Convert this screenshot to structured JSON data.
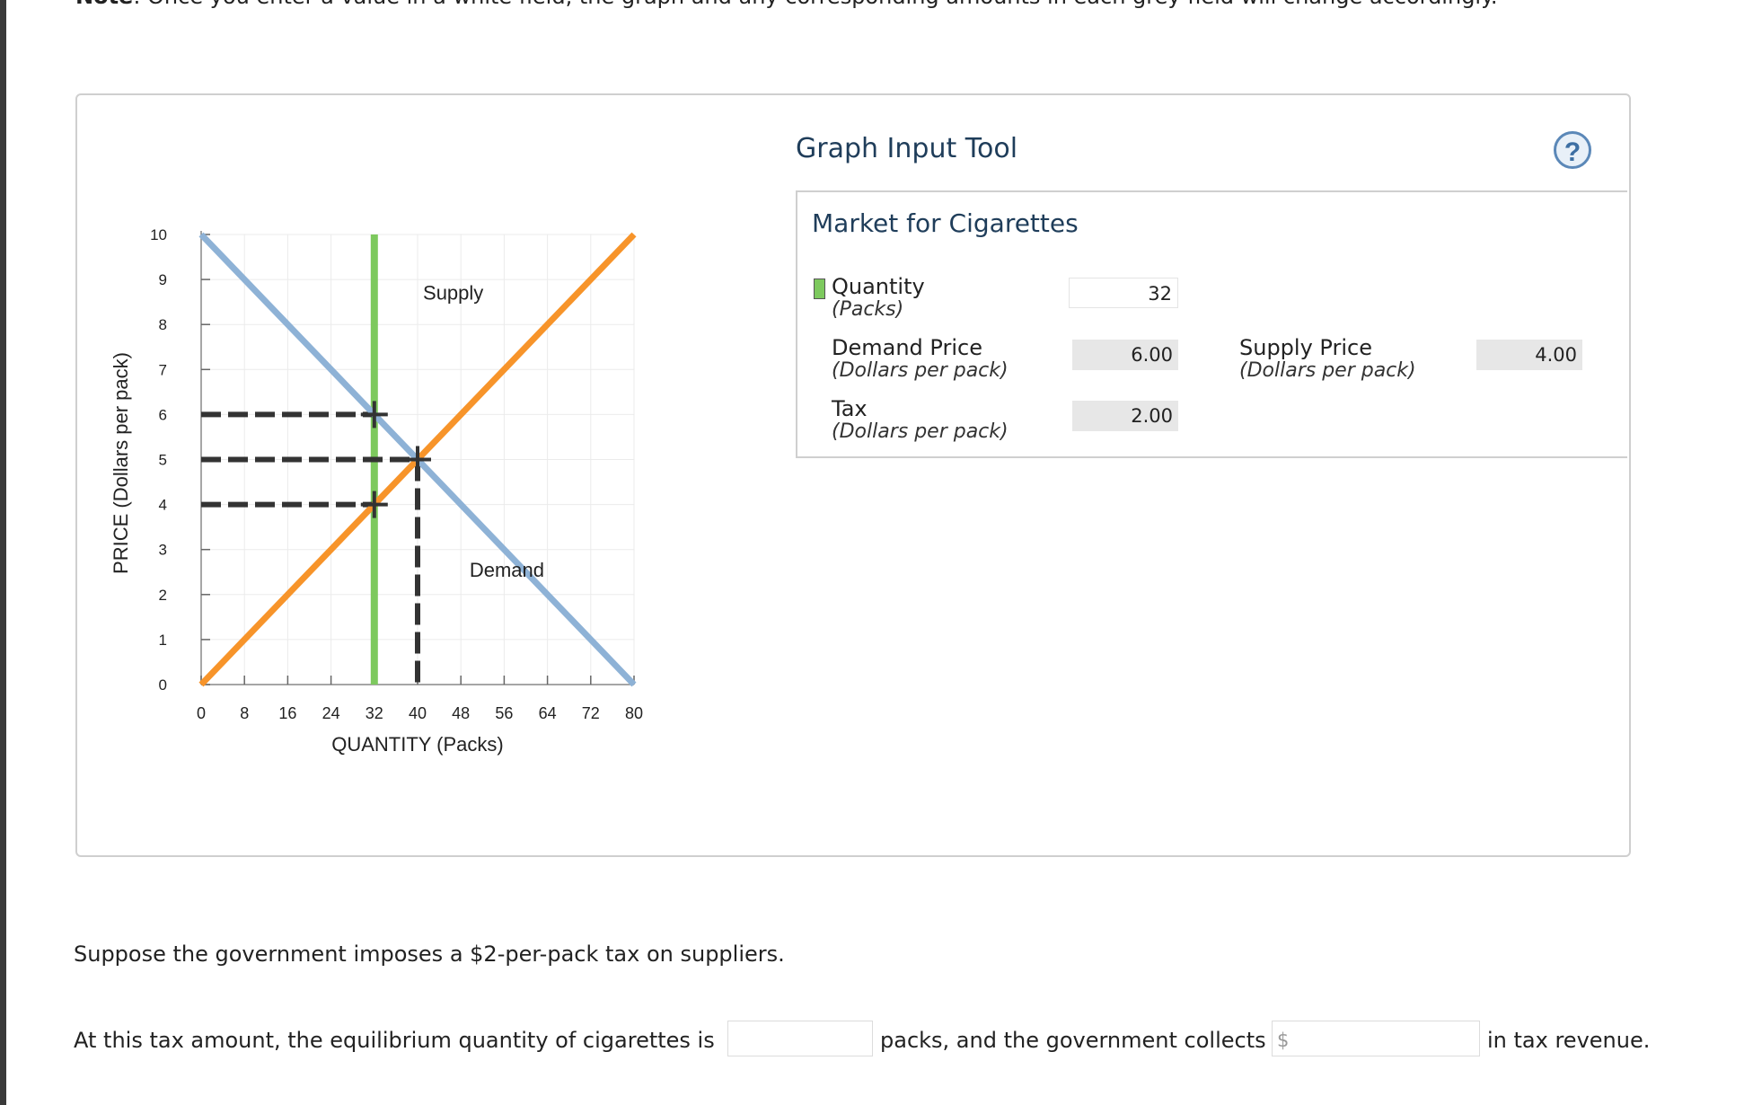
{
  "note": {
    "bold": "Note",
    "text": ": Once you enter a value in a white field, the graph and any corresponding amounts in each grey field will change accordingly."
  },
  "tool": {
    "title": "Graph Input Tool",
    "help": "?",
    "subtitle": "Market for Cigarettes",
    "quantity_label": "Quantity",
    "quantity_unit": "(Packs)",
    "quantity_value": "32",
    "demand_price_label": "Demand Price",
    "demand_price_unit": "(Dollars per pack)",
    "demand_price_value": "6.00",
    "supply_price_label": "Supply Price",
    "supply_price_unit": "(Dollars per pack)",
    "supply_price_value": "4.00",
    "tax_label": "Tax",
    "tax_unit": "(Dollars per pack)",
    "tax_value": "2.00"
  },
  "question": {
    "line1": "Suppose the government imposes a $2-per-pack tax on suppliers.",
    "part1": "At this tax amount, the equilibrium quantity of cigarettes is",
    "part2": "packs, and the government collects",
    "currency": "$",
    "part3": "in tax revenue.",
    "quantity_answer": "",
    "revenue_answer": ""
  },
  "colors": {
    "demand": "#8eb2d6",
    "supply": "#f7942a",
    "quantity_line": "#7dc95e",
    "dashed": "#333333",
    "grid": "#ebebeb"
  },
  "chart_data": {
    "type": "line",
    "xlabel": "QUANTITY (Packs)",
    "ylabel": "PRICE (Dollars per pack)",
    "xlim": [
      0,
      80
    ],
    "ylim": [
      0,
      10
    ],
    "xticks": [
      0,
      8,
      16,
      24,
      32,
      40,
      48,
      56,
      64,
      72,
      80
    ],
    "yticks": [
      0,
      1,
      2,
      3,
      4,
      5,
      6,
      7,
      8,
      9,
      10
    ],
    "grid": true,
    "series": [
      {
        "name": "Supply",
        "color": "#f7942a",
        "x": [
          0,
          80
        ],
        "y": [
          0,
          10
        ]
      },
      {
        "name": "Demand",
        "color": "#8eb2d6",
        "x": [
          0,
          80
        ],
        "y": [
          10,
          0
        ]
      }
    ],
    "quantity_line": {
      "x": 32
    },
    "points": [
      {
        "x": 32,
        "y": 6
      },
      {
        "x": 32,
        "y": 4
      },
      {
        "x": 40,
        "y": 5
      }
    ]
  }
}
